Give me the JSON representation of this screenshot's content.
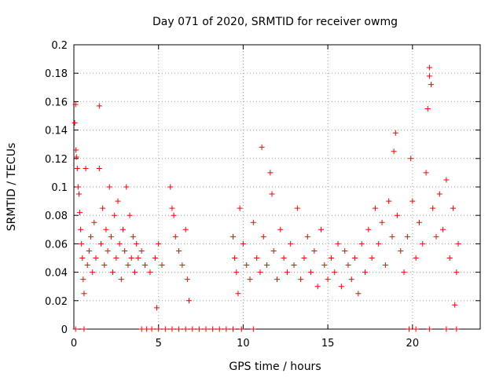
{
  "chart_data": {
    "type": "scatter",
    "title": "Day 071 of 2020, SRMTID for receiver owmg",
    "xlabel": "GPS time / hours",
    "ylabel": "SRMTID / TECUs",
    "xlim": [
      0,
      24
    ],
    "ylim": [
      0,
      0.2
    ],
    "xticks": [
      0,
      5,
      10,
      15,
      20
    ],
    "xtick_labels": [
      "0",
      "5",
      "10",
      "15",
      "20"
    ],
    "yticks": [
      0,
      0.02,
      0.04,
      0.06,
      0.08,
      0.1,
      0.12,
      0.14,
      0.16,
      0.18,
      0.2
    ],
    "ytick_labels": [
      "0",
      "0.02",
      "0.04",
      "0.06",
      "0.08",
      "0.1",
      "0.12",
      "0.14",
      "0.16",
      "0.18",
      "0.2"
    ],
    "grid": true,
    "marker": "+",
    "color": "#ff0000",
    "series": [
      {
        "name": "SRMTID",
        "points": [
          [
            0.05,
            0.145
          ],
          [
            0.1,
            0.158
          ],
          [
            0.12,
            0.126
          ],
          [
            0.15,
            0.121
          ],
          [
            0.2,
            0.113
          ],
          [
            0.25,
            0.1
          ],
          [
            0.3,
            0.095
          ],
          [
            0.35,
            0.082
          ],
          [
            0.4,
            0.07
          ],
          [
            0.45,
            0.06
          ],
          [
            0.5,
            0.05
          ],
          [
            0.55,
            0.035
          ],
          [
            0.6,
            0.025
          ],
          [
            0.7,
            0.113
          ],
          [
            0.8,
            0.045
          ],
          [
            0.9,
            0.055
          ],
          [
            1.0,
            0.065
          ],
          [
            1.1,
            0.04
          ],
          [
            1.2,
            0.075
          ],
          [
            1.3,
            0.05
          ],
          [
            1.5,
            0.157
          ],
          [
            1.5,
            0.113
          ],
          [
            1.6,
            0.06
          ],
          [
            1.7,
            0.085
          ],
          [
            1.8,
            0.045
          ],
          [
            1.9,
            0.07
          ],
          [
            2.0,
            0.055
          ],
          [
            2.1,
            0.1
          ],
          [
            2.2,
            0.065
          ],
          [
            2.3,
            0.04
          ],
          [
            2.4,
            0.08
          ],
          [
            2.5,
            0.05
          ],
          [
            2.6,
            0.09
          ],
          [
            2.7,
            0.06
          ],
          [
            2.8,
            0.035
          ],
          [
            2.9,
            0.07
          ],
          [
            3.0,
            0.055
          ],
          [
            3.1,
            0.1
          ],
          [
            3.2,
            0.045
          ],
          [
            3.3,
            0.08
          ],
          [
            3.4,
            0.05
          ],
          [
            3.5,
            0.065
          ],
          [
            3.6,
            0.04
          ],
          [
            3.7,
            0.06
          ],
          [
            3.8,
            0.05
          ],
          [
            4.0,
            0.055
          ],
          [
            4.2,
            0.045
          ],
          [
            4.5,
            0.04
          ],
          [
            4.8,
            0.05
          ],
          [
            4.9,
            0.015
          ],
          [
            5.0,
            0.06
          ],
          [
            5.2,
            0.045
          ],
          [
            5.7,
            0.1
          ],
          [
            5.8,
            0.085
          ],
          [
            5.9,
            0.08
          ],
          [
            6.0,
            0.065
          ],
          [
            6.2,
            0.055
          ],
          [
            6.4,
            0.045
          ],
          [
            6.6,
            0.07
          ],
          [
            6.7,
            0.035
          ],
          [
            6.8,
            0.02
          ],
          [
            9.4,
            0.065
          ],
          [
            9.5,
            0.05
          ],
          [
            9.6,
            0.04
          ],
          [
            9.7,
            0.025
          ],
          [
            9.8,
            0.085
          ],
          [
            10.0,
            0.06
          ],
          [
            10.2,
            0.045
          ],
          [
            10.4,
            0.035
          ],
          [
            10.6,
            0.075
          ],
          [
            10.8,
            0.05
          ],
          [
            11.0,
            0.04
          ],
          [
            11.1,
            0.128
          ],
          [
            11.2,
            0.065
          ],
          [
            11.4,
            0.045
          ],
          [
            11.6,
            0.11
          ],
          [
            11.7,
            0.095
          ],
          [
            11.8,
            0.055
          ],
          [
            12.0,
            0.035
          ],
          [
            12.2,
            0.07
          ],
          [
            12.4,
            0.05
          ],
          [
            12.6,
            0.04
          ],
          [
            12.8,
            0.06
          ],
          [
            13.0,
            0.045
          ],
          [
            13.2,
            0.085
          ],
          [
            13.4,
            0.035
          ],
          [
            13.6,
            0.05
          ],
          [
            13.8,
            0.065
          ],
          [
            14.0,
            0.04
          ],
          [
            14.2,
            0.055
          ],
          [
            14.4,
            0.03
          ],
          [
            14.6,
            0.07
          ],
          [
            14.8,
            0.045
          ],
          [
            15.0,
            0.035
          ],
          [
            15.2,
            0.05
          ],
          [
            15.4,
            0.04
          ],
          [
            15.6,
            0.06
          ],
          [
            15.8,
            0.03
          ],
          [
            16.0,
            0.055
          ],
          [
            16.2,
            0.045
          ],
          [
            16.4,
            0.035
          ],
          [
            16.6,
            0.05
          ],
          [
            16.8,
            0.025
          ],
          [
            17.0,
            0.06
          ],
          [
            17.2,
            0.04
          ],
          [
            17.4,
            0.07
          ],
          [
            17.6,
            0.05
          ],
          [
            17.8,
            0.085
          ],
          [
            18.0,
            0.06
          ],
          [
            18.2,
            0.075
          ],
          [
            18.4,
            0.045
          ],
          [
            18.6,
            0.09
          ],
          [
            18.8,
            0.065
          ],
          [
            18.9,
            0.125
          ],
          [
            19.0,
            0.138
          ],
          [
            19.1,
            0.08
          ],
          [
            19.3,
            0.055
          ],
          [
            19.5,
            0.04
          ],
          [
            19.7,
            0.065
          ],
          [
            19.9,
            0.12
          ],
          [
            20.0,
            0.09
          ],
          [
            20.2,
            0.05
          ],
          [
            20.4,
            0.075
          ],
          [
            20.6,
            0.06
          ],
          [
            20.8,
            0.11
          ],
          [
            20.9,
            0.155
          ],
          [
            21.0,
            0.184
          ],
          [
            21.0,
            0.178
          ],
          [
            21.1,
            0.172
          ],
          [
            21.2,
            0.085
          ],
          [
            21.4,
            0.065
          ],
          [
            21.6,
            0.095
          ],
          [
            21.8,
            0.07
          ],
          [
            22.0,
            0.105
          ],
          [
            22.2,
            0.05
          ],
          [
            22.4,
            0.085
          ],
          [
            22.5,
            0.017
          ],
          [
            22.6,
            0.04
          ],
          [
            22.7,
            0.06
          ]
        ]
      }
    ],
    "zero_points_x": [
      0.1,
      0.6,
      4.0,
      4.3,
      4.6,
      5.0,
      5.4,
      5.8,
      6.2,
      6.6,
      7.0,
      7.4,
      7.8,
      8.2,
      8.6,
      9.0,
      9.4,
      9.9,
      10.6,
      19.8,
      20.2,
      21.0,
      22.0,
      22.6
    ]
  }
}
